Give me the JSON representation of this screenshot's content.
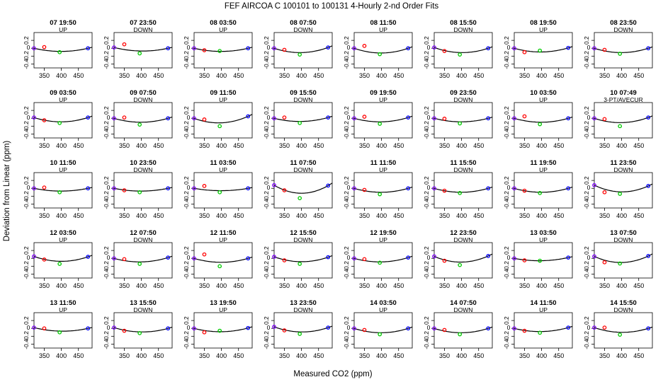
{
  "title": "FEF   AIRCOA C   100101 to 100131   4-Hourly 2-nd Order Fits",
  "xlabel": "Measured CO2 (ppm)",
  "ylabel": "Deviation from Linear (ppm)",
  "chart_data": {
    "type": "scatter",
    "grid_rows": 5,
    "grid_cols": 8,
    "xlim": [
      320,
      490
    ],
    "ylim": [
      -0.5,
      0.4
    ],
    "xticks": [
      350,
      400,
      450
    ],
    "yticks": [
      -0.4,
      -0.2,
      0,
      0.2
    ],
    "x_standards": [
      320,
      350,
      395,
      478
    ],
    "series_colors": {
      "point1": "#8000ff",
      "point2": "#ff0000",
      "point3": "#00cc00",
      "point4": "#0000ff",
      "fit": "#000000"
    },
    "panels": [
      {
        "title": "07 19:50",
        "direction": "UP",
        "y": [
          0.0,
          0.03,
          -0.1,
          0.0
        ],
        "curvature": 0.08
      },
      {
        "title": "07 23:50",
        "direction": "DOWN",
        "y": [
          0.02,
          0.1,
          -0.13,
          0.0
        ],
        "curvature": 0.08
      },
      {
        "title": "08 03:50",
        "direction": "UP",
        "y": [
          0.0,
          -0.05,
          -0.07,
          0.0
        ],
        "curvature": 0.08
      },
      {
        "title": "08 07:50",
        "direction": "DOWN",
        "y": [
          0.0,
          -0.04,
          -0.16,
          0.02
        ],
        "curvature": 0.12
      },
      {
        "title": "08 11:50",
        "direction": "UP",
        "y": [
          0.0,
          0.06,
          -0.15,
          0.0
        ],
        "curvature": 0.12
      },
      {
        "title": "08 15:50",
        "direction": "DOWN",
        "y": [
          0.02,
          -0.07,
          -0.16,
          0.0
        ],
        "curvature": 0.12
      },
      {
        "title": "08 19:50",
        "direction": "UP",
        "y": [
          0.0,
          -0.1,
          -0.06,
          0.01
        ],
        "curvature": 0.1
      },
      {
        "title": "08 23:50",
        "direction": "DOWN",
        "y": [
          0.0,
          -0.04,
          -0.14,
          0.0
        ],
        "curvature": 0.11
      },
      {
        "title": "09 03:50",
        "direction": "UP",
        "y": [
          0.02,
          -0.05,
          -0.12,
          0.02
        ],
        "curvature": 0.11
      },
      {
        "title": "09 07:50",
        "direction": "DOWN",
        "y": [
          0.0,
          0.02,
          -0.16,
          0.0
        ],
        "curvature": 0.1
      },
      {
        "title": "09 11:50",
        "direction": "UP",
        "y": [
          0.0,
          -0.03,
          -0.2,
          0.05
        ],
        "curvature": 0.14
      },
      {
        "title": "09 15:50",
        "direction": "DOWN",
        "y": [
          0.0,
          0.02,
          -0.12,
          0.02
        ],
        "curvature": 0.09
      },
      {
        "title": "09 19:50",
        "direction": "UP",
        "y": [
          0.0,
          0.04,
          -0.14,
          0.02
        ],
        "curvature": 0.1
      },
      {
        "title": "09 23:50",
        "direction": "DOWN",
        "y": [
          0.0,
          -0.01,
          -0.13,
          0.0
        ],
        "curvature": 0.09
      },
      {
        "title": "10 03:50",
        "direction": "UP",
        "y": [
          0.0,
          0.05,
          -0.15,
          0.0
        ],
        "curvature": 0.1
      },
      {
        "title": "10 07:49",
        "direction": "3-PT/AVECUR",
        "y": [
          0.0,
          -0.02,
          -0.2,
          0.02
        ],
        "curvature": 0.12
      },
      {
        "title": "10 11:50",
        "direction": "UP",
        "y": [
          0.0,
          0.02,
          -0.1,
          0.0
        ],
        "curvature": 0.07
      },
      {
        "title": "10 23:50",
        "direction": "DOWN",
        "y": [
          0.0,
          -0.05,
          -0.1,
          0.0
        ],
        "curvature": 0.07
      },
      {
        "title": "11 03:50",
        "direction": "UP",
        "y": [
          0.0,
          0.06,
          -0.1,
          0.0
        ],
        "curvature": 0.06
      },
      {
        "title": "11 07:50",
        "direction": "DOWN",
        "y": [
          0.08,
          -0.05,
          -0.25,
          0.07
        ],
        "curvature": 0.2
      },
      {
        "title": "11 11:50",
        "direction": "UP",
        "y": [
          0.0,
          -0.04,
          -0.15,
          0.0
        ],
        "curvature": 0.1
      },
      {
        "title": "11 15:50",
        "direction": "DOWN",
        "y": [
          0.0,
          -0.06,
          -0.12,
          0.0
        ],
        "curvature": 0.1
      },
      {
        "title": "11 19:50",
        "direction": "UP",
        "y": [
          0.0,
          -0.06,
          -0.12,
          0.0
        ],
        "curvature": 0.1
      },
      {
        "title": "11 23:50",
        "direction": "DOWN",
        "y": [
          0.08,
          -0.1,
          -0.14,
          0.06
        ],
        "curvature": 0.16
      },
      {
        "title": "12 03:50",
        "direction": "UP",
        "y": [
          0.05,
          -0.03,
          -0.14,
          0.04
        ],
        "curvature": 0.12
      },
      {
        "title": "12 07:50",
        "direction": "DOWN",
        "y": [
          0.0,
          -0.02,
          -0.14,
          0.02
        ],
        "curvature": 0.1
      },
      {
        "title": "12 11:50",
        "direction": "UP",
        "y": [
          0.0,
          0.1,
          -0.2,
          0.0
        ],
        "curvature": 0.1
      },
      {
        "title": "12 15:50",
        "direction": "DOWN",
        "y": [
          0.04,
          -0.05,
          -0.14,
          0.03
        ],
        "curvature": 0.12
      },
      {
        "title": "12 19:50",
        "direction": "UP",
        "y": [
          0.0,
          -0.02,
          -0.11,
          0.02
        ],
        "curvature": 0.1
      },
      {
        "title": "12 23:50",
        "direction": "DOWN",
        "y": [
          0.05,
          -0.06,
          -0.17,
          0.06
        ],
        "curvature": 0.15
      },
      {
        "title": "13 03:50",
        "direction": "UP",
        "y": [
          0.0,
          -0.05,
          -0.06,
          0.02
        ],
        "curvature": 0.07
      },
      {
        "title": "13 07:50",
        "direction": "DOWN",
        "y": [
          0.05,
          -0.1,
          -0.13,
          0.06
        ],
        "curvature": 0.16
      },
      {
        "title": "13 11:50",
        "direction": "UP",
        "y": [
          0.02,
          0.0,
          -0.1,
          0.0
        ],
        "curvature": 0.08
      },
      {
        "title": "13 15:50",
        "direction": "DOWN",
        "y": [
          0.02,
          -0.06,
          -0.12,
          0.0
        ],
        "curvature": 0.1
      },
      {
        "title": "13 19:50",
        "direction": "UP",
        "y": [
          0.0,
          -0.1,
          -0.06,
          0.01
        ],
        "curvature": 0.09
      },
      {
        "title": "13 23:50",
        "direction": "DOWN",
        "y": [
          0.04,
          -0.05,
          -0.14,
          0.02
        ],
        "curvature": 0.12
      },
      {
        "title": "14 03:50",
        "direction": "UP",
        "y": [
          0.0,
          -0.04,
          -0.15,
          0.0
        ],
        "curvature": 0.11
      },
      {
        "title": "14 07:50",
        "direction": "DOWN",
        "y": [
          0.0,
          -0.04,
          -0.15,
          0.0
        ],
        "curvature": 0.11
      },
      {
        "title": "14 11:50",
        "direction": "UP",
        "y": [
          0.0,
          -0.06,
          -0.11,
          0.02
        ],
        "curvature": 0.09
      },
      {
        "title": "14 15:50",
        "direction": "DOWN",
        "y": [
          0.02,
          0.02,
          -0.16,
          0.0
        ],
        "curvature": 0.11
      }
    ]
  }
}
